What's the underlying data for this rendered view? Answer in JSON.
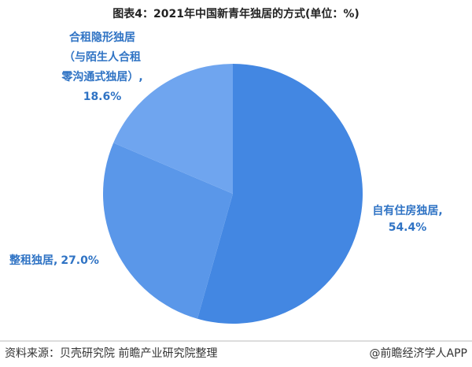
{
  "chart_data": {
    "type": "pie",
    "title": "图表4：2021年中国新青年独居的方式(单位：%)",
    "categories": [
      "自有住房独居,",
      "整租独居,",
      "合租隐形独居（与陌生人合租零沟通式独居）,"
    ],
    "values": [
      54.4,
      27.0,
      18.6
    ],
    "value_labels": [
      "54.4%",
      "27.0%",
      "18.6%"
    ],
    "colors": [
      "#4387e2",
      "#5a97e9",
      "#6fa5ef"
    ],
    "source": "资料来源：贝壳研究院 前瞻产业研究院整理",
    "credit": "@前瞻经济学人APP"
  }
}
